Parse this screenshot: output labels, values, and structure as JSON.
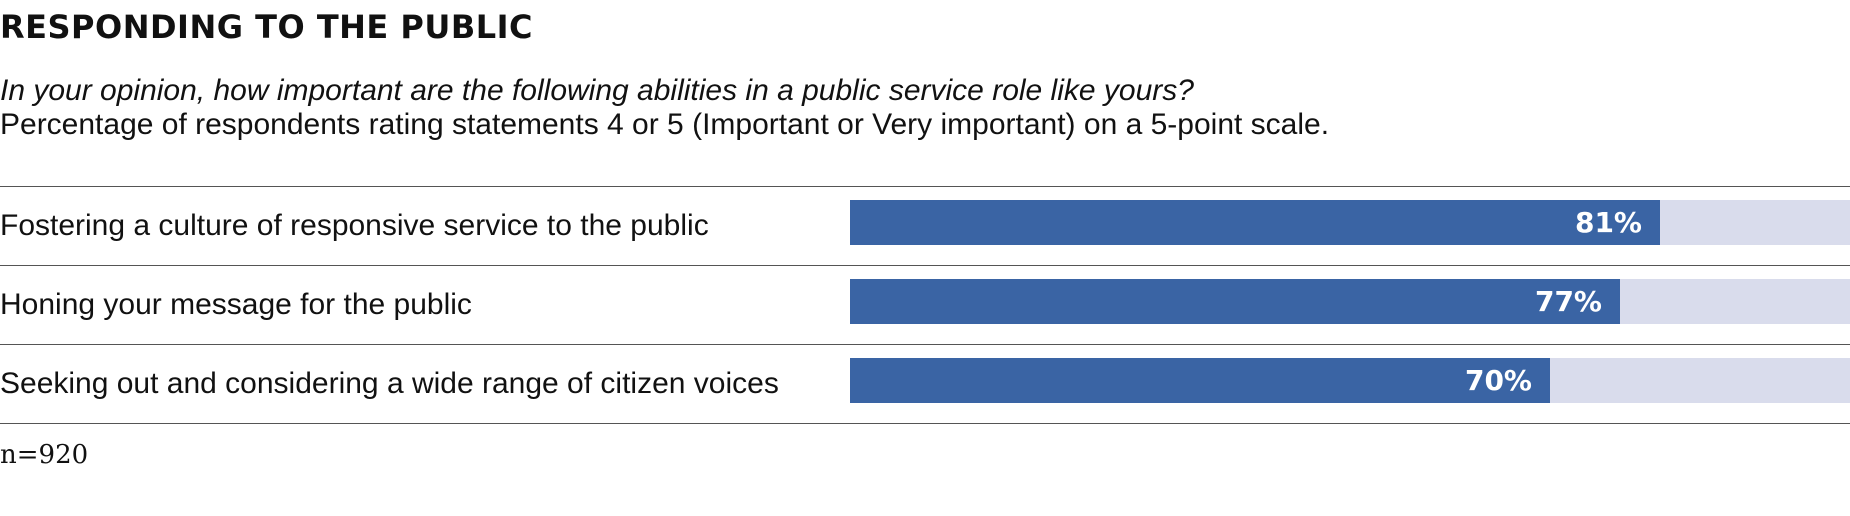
{
  "chart_data": {
    "type": "bar",
    "orientation": "horizontal",
    "title": "RESPONDING TO THE PUBLIC",
    "subtitle": "In your opinion, how important are the following abilities in a public service role like yours?",
    "description": "Percentage of respondents rating statements 4 or 5 (Important or Very important) on a 5-point scale.",
    "categories": [
      "Fostering a culture of responsive service to the public",
      "Honing your message for the public",
      "Seeking out and considering a wide range of citizen voices"
    ],
    "values": [
      81,
      77,
      70
    ],
    "value_labels": [
      "81%",
      "77%",
      "70%"
    ],
    "xlim": [
      0,
      100
    ],
    "unit": "%",
    "grid": false,
    "legend": "none",
    "note": "n=920"
  },
  "colors": {
    "bar": "#3a64a4",
    "track": "#d9dcec",
    "rule": "#555555",
    "text": "#111111",
    "value_text": "#ffffff"
  }
}
